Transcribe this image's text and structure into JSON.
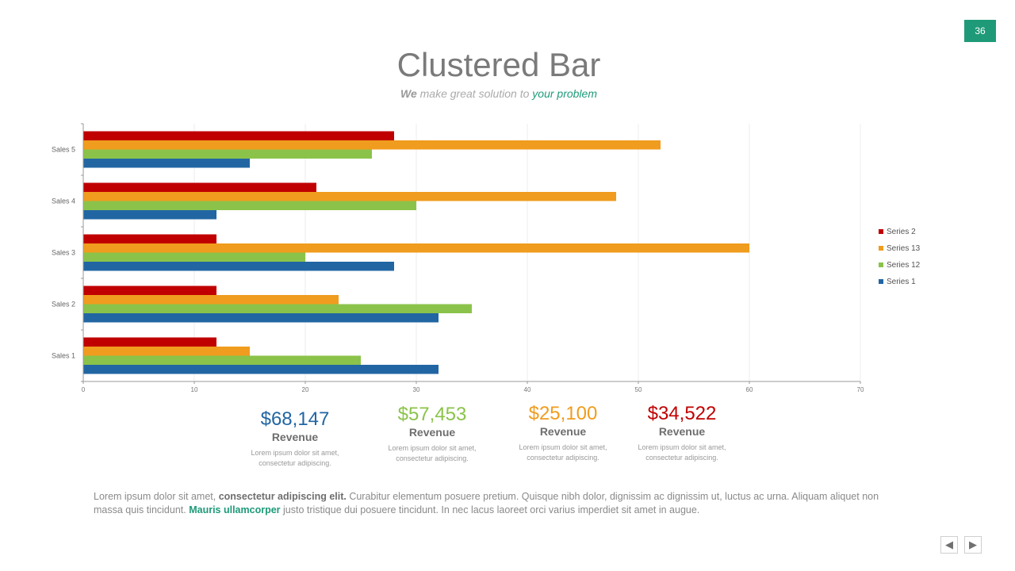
{
  "page_number": "36",
  "title": "Clustered Bar",
  "subtitle": {
    "we": "We",
    "middle": " make great solution to ",
    "accent": "your problem"
  },
  "chart_data": {
    "type": "bar",
    "orientation": "horizontal",
    "categories": [
      "Sales 1",
      "Sales 2",
      "Sales 3",
      "Sales 4",
      "Sales 5"
    ],
    "series": [
      {
        "name": "Series 1",
        "color": "#2166a3",
        "values": [
          32,
          32,
          28,
          12,
          15
        ]
      },
      {
        "name": "Series 12",
        "color": "#8bc34a",
        "values": [
          25,
          35,
          20,
          30,
          26
        ]
      },
      {
        "name": "Series 13",
        "color": "#f09c1e",
        "values": [
          15,
          23,
          60,
          48,
          52
        ]
      },
      {
        "name": "Series 2",
        "color": "#c00000",
        "values": [
          12,
          12,
          12,
          21,
          28
        ]
      }
    ],
    "xlim": [
      0,
      70
    ],
    "xticks": [
      0,
      10,
      20,
      30,
      40,
      50,
      60,
      70
    ],
    "grid": true,
    "legend": "right"
  },
  "stats": [
    {
      "value": "$68,147",
      "label": "Revenue",
      "color": "#2166a3",
      "desc_line1": "Lorem ipsum dolor sit amet,",
      "desc_line2": "consectetur adipiscing."
    },
    {
      "value": "$57,453",
      "label": "Revenue",
      "color": "#8bc34a",
      "desc_line1": "Lorem ipsum dolor sit amet,",
      "desc_line2": "consectetur adipiscing."
    },
    {
      "value": "$25,100",
      "label": "Revenue",
      "color": "#f09c1e",
      "desc_line1": "Lorem ipsum dolor sit amet,",
      "desc_line2": "consectetur adipiscing."
    },
    {
      "value": "$34,522",
      "label": "Revenue",
      "color": "#c00000",
      "desc_line1": "Lorem ipsum dolor sit amet,",
      "desc_line2": "consectetur adipiscing."
    }
  ],
  "body": {
    "part1": "Lorem ipsum dolor sit amet, ",
    "bold": "consectetur adipiscing elit.",
    "part2": " Curabitur elementum posuere pretium. Quisque nibh dolor, dignissim ac dignissim ut, luctus ac urna. Aliquam aliquet non massa quis tincidunt. ",
    "link": "Mauris ullamcorper",
    "part3": " justo tristique dui posuere tincidunt. In nec lacus laoreet orci varius imperdiet sit amet in augue."
  },
  "nav": {
    "prev_icon": "prev-arrow-icon",
    "next_icon": "next-arrow-icon",
    "prev_glyph": "◀",
    "next_glyph": "▶"
  }
}
